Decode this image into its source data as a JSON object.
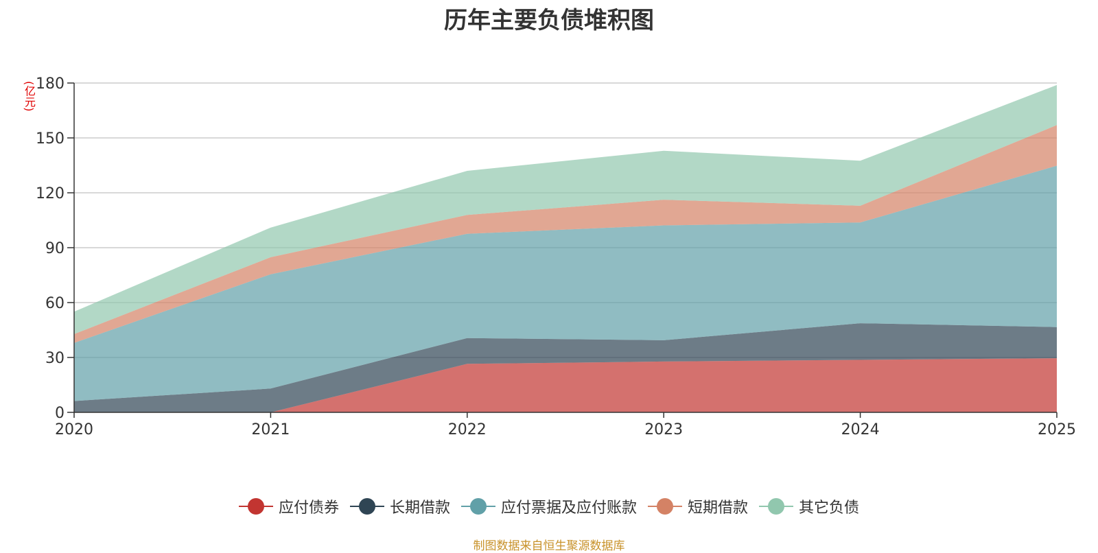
{
  "chart_data": {
    "type": "area",
    "title": "历年主要负债堆积图",
    "unit_label": "(亿元)",
    "x": [
      "2020",
      "2021",
      "2022",
      "2023",
      "2024",
      "2025"
    ],
    "ylim": [
      0,
      180
    ],
    "yticks": [
      "0",
      "30",
      "60",
      "90",
      "120",
      "150",
      "180"
    ],
    "grid": true,
    "stacked": true,
    "legend_position": "bottom",
    "series": [
      {
        "name": "应付债券",
        "color": "#c23531",
        "values": [
          0,
          0,
          26.5,
          27.8,
          28.7,
          29.6
        ]
      },
      {
        "name": "长期借款",
        "color": "#2f4554",
        "values": [
          6.2,
          13.0,
          14.1,
          11.6,
          20.0,
          17.0
        ]
      },
      {
        "name": "应付票据及应付账款",
        "color": "#61a0a8",
        "values": [
          31.8,
          62.5,
          57.0,
          62.8,
          55.1,
          88.2
        ]
      },
      {
        "name": "短期借款",
        "color": "#d48265",
        "values": [
          4.8,
          9.3,
          10.3,
          14.0,
          9.1,
          22.2
        ]
      },
      {
        "name": "其它负债",
        "color": "#91c7ae",
        "values": [
          12.2,
          16.2,
          24.1,
          26.8,
          24.6,
          21.9
        ]
      }
    ]
  },
  "footer": {
    "source": "制图数据来自恒生聚源数据库"
  }
}
